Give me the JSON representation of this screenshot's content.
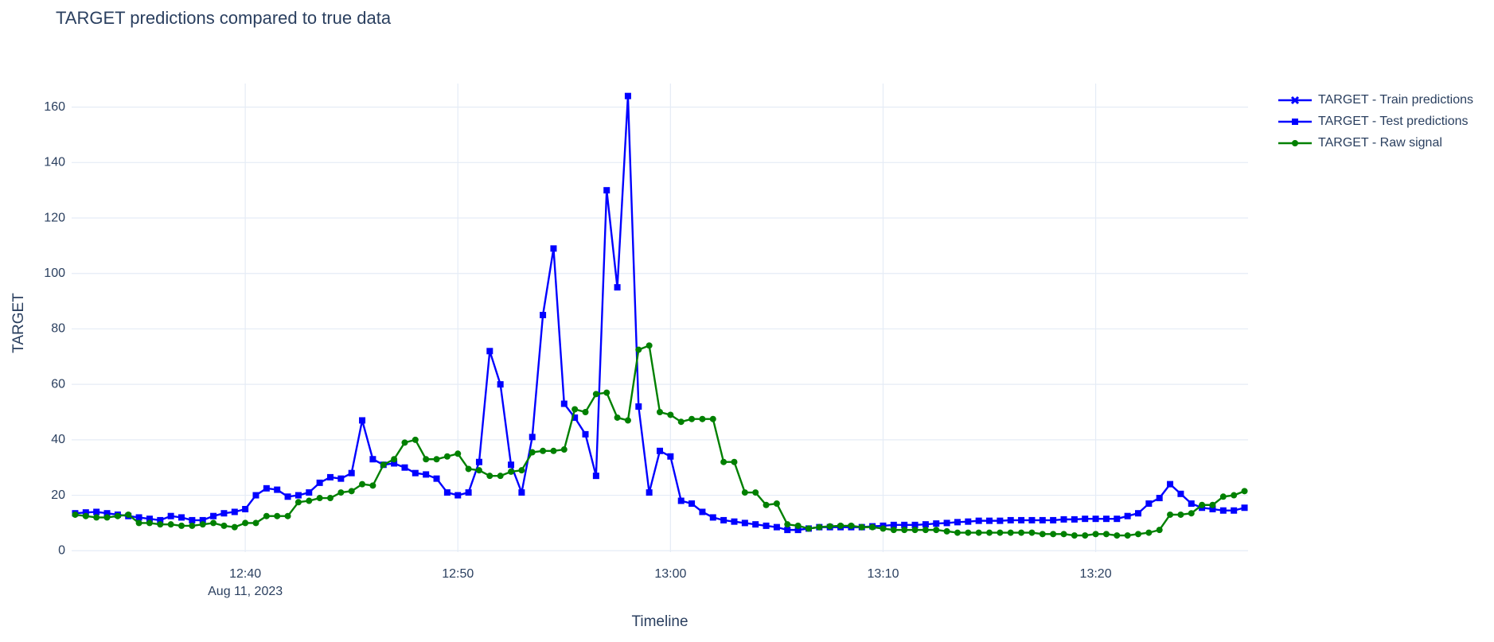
{
  "chart_data": {
    "type": "line",
    "title": "TARGET predictions compared to true data",
    "x_label": "Timeline",
    "y_label": "TARGET",
    "x_date_label": "Aug 11, 2023",
    "xlim": [
      "2023-08-11T12:31:50",
      "2023-08-11T13:27:10"
    ],
    "xticks": [
      {
        "value": "2023-08-11T12:40:00",
        "label": "12:40"
      },
      {
        "value": "2023-08-11T12:50:00",
        "label": "12:50"
      },
      {
        "value": "2023-08-11T13:00:00",
        "label": "13:00"
      },
      {
        "value": "2023-08-11T13:10:00",
        "label": "13:10"
      },
      {
        "value": "2023-08-11T13:20:00",
        "label": "13:20"
      }
    ],
    "ylim": [
      -0.5,
      168.5
    ],
    "yticks": [
      0,
      20,
      40,
      60,
      80,
      100,
      120,
      140,
      160
    ],
    "grid": true,
    "legend": "right",
    "x": [
      "2023-08-11T12:32:00",
      "2023-08-11T12:32:30",
      "2023-08-11T12:33:00",
      "2023-08-11T12:33:30",
      "2023-08-11T12:34:00",
      "2023-08-11T12:34:30",
      "2023-08-11T12:35:00",
      "2023-08-11T12:35:30",
      "2023-08-11T12:36:00",
      "2023-08-11T12:36:30",
      "2023-08-11T12:37:00",
      "2023-08-11T12:37:30",
      "2023-08-11T12:38:00",
      "2023-08-11T12:38:30",
      "2023-08-11T12:39:00",
      "2023-08-11T12:39:30",
      "2023-08-11T12:40:00",
      "2023-08-11T12:40:30",
      "2023-08-11T12:41:00",
      "2023-08-11T12:41:30",
      "2023-08-11T12:42:00",
      "2023-08-11T12:42:30",
      "2023-08-11T12:43:00",
      "2023-08-11T12:43:30",
      "2023-08-11T12:44:00",
      "2023-08-11T12:44:30",
      "2023-08-11T12:45:00",
      "2023-08-11T12:45:30",
      "2023-08-11T12:46:00",
      "2023-08-11T12:46:30",
      "2023-08-11T12:47:00",
      "2023-08-11T12:47:30",
      "2023-08-11T12:48:00",
      "2023-08-11T12:48:30",
      "2023-08-11T12:49:00",
      "2023-08-11T12:49:30",
      "2023-08-11T12:50:00",
      "2023-08-11T12:50:30",
      "2023-08-11T12:51:00",
      "2023-08-11T12:51:30",
      "2023-08-11T12:52:00",
      "2023-08-11T12:52:30",
      "2023-08-11T12:53:00",
      "2023-08-11T12:53:30",
      "2023-08-11T12:54:00",
      "2023-08-11T12:54:30",
      "2023-08-11T12:55:00",
      "2023-08-11T12:55:30",
      "2023-08-11T12:56:00",
      "2023-08-11T12:56:30",
      "2023-08-11T12:57:00",
      "2023-08-11T12:57:30",
      "2023-08-11T12:58:00",
      "2023-08-11T12:58:30",
      "2023-08-11T12:59:00",
      "2023-08-11T12:59:30",
      "2023-08-11T13:00:00",
      "2023-08-11T13:00:30",
      "2023-08-11T13:01:00",
      "2023-08-11T13:01:30",
      "2023-08-11T13:02:00",
      "2023-08-11T13:02:30",
      "2023-08-11T13:03:00",
      "2023-08-11T13:03:30",
      "2023-08-11T13:04:00",
      "2023-08-11T13:04:30",
      "2023-08-11T13:05:00",
      "2023-08-11T13:05:30",
      "2023-08-11T13:06:00",
      "2023-08-11T13:06:30",
      "2023-08-11T13:07:00",
      "2023-08-11T13:07:30",
      "2023-08-11T13:08:00",
      "2023-08-11T13:08:30",
      "2023-08-11T13:09:00",
      "2023-08-11T13:09:30",
      "2023-08-11T13:10:00",
      "2023-08-11T13:10:30",
      "2023-08-11T13:11:00",
      "2023-08-11T13:11:30",
      "2023-08-11T13:12:00",
      "2023-08-11T13:12:30",
      "2023-08-11T13:13:00",
      "2023-08-11T13:13:30",
      "2023-08-11T13:14:00",
      "2023-08-11T13:14:30",
      "2023-08-11T13:15:00",
      "2023-08-11T13:15:30",
      "2023-08-11T13:16:00",
      "2023-08-11T13:16:30",
      "2023-08-11T13:17:00",
      "2023-08-11T13:17:30",
      "2023-08-11T13:18:00",
      "2023-08-11T13:18:30",
      "2023-08-11T13:19:00",
      "2023-08-11T13:19:30",
      "2023-08-11T13:20:00",
      "2023-08-11T13:20:30",
      "2023-08-11T13:21:00",
      "2023-08-11T13:21:30",
      "2023-08-11T13:22:00",
      "2023-08-11T13:22:30",
      "2023-08-11T13:23:00",
      "2023-08-11T13:23:30",
      "2023-08-11T13:24:00",
      "2023-08-11T13:24:30",
      "2023-08-11T13:25:00",
      "2023-08-11T13:25:30",
      "2023-08-11T13:26:00",
      "2023-08-11T13:26:30",
      "2023-08-11T13:27:00"
    ],
    "series": [
      {
        "name": "TARGET - Train predictions",
        "color": "#0000ff",
        "marker": "x",
        "x": [],
        "values": []
      },
      {
        "name": "TARGET - Test predictions",
        "color": "#0000ff",
        "marker": "square",
        "values": [
          13.5,
          13.8,
          14,
          13.5,
          13,
          12.5,
          12,
          11.5,
          11,
          12.5,
          12,
          11,
          11,
          12.5,
          13.5,
          14,
          15,
          20,
          22.5,
          22,
          19.5,
          20,
          21,
          24.5,
          26.5,
          26,
          28,
          47,
          33,
          31,
          31.5,
          30,
          28,
          27.5,
          26,
          21,
          20,
          21,
          32,
          72,
          60,
          31,
          21,
          41,
          85,
          109,
          53,
          48,
          42,
          27,
          130,
          95,
          164,
          52,
          21,
          36,
          34,
          18,
          17,
          14,
          12,
          11,
          10.5,
          10,
          9.5,
          9,
          8.5,
          7.5,
          7.5,
          8,
          8.5,
          8.5,
          8.5,
          8.5,
          8.5,
          8.8,
          9,
          9.3,
          9.3,
          9.3,
          9.5,
          9.8,
          10,
          10.3,
          10.5,
          10.8,
          10.8,
          10.8,
          11,
          11,
          11,
          11,
          11,
          11.3,
          11.3,
          11.5,
          11.5,
          11.5,
          11.5,
          12.5,
          13.5,
          17,
          19,
          24,
          20.5,
          17,
          15.5,
          15,
          14.5,
          14.5,
          15.5
        ]
      },
      {
        "name": "TARGET - Raw signal",
        "color": "#008000",
        "marker": "circle",
        "values": [
          13,
          12.5,
          12,
          12,
          12.5,
          13,
          10,
          10,
          9.5,
          9.5,
          9,
          9,
          9.5,
          10,
          9,
          8.5,
          10,
          10,
          12.5,
          12.5,
          12.5,
          17.5,
          18,
          19,
          19,
          21,
          21.5,
          24,
          23.5,
          31,
          33,
          39,
          40,
          33,
          33,
          34,
          35,
          29.5,
          29,
          27,
          27,
          28.5,
          29,
          35.5,
          36,
          36,
          36.5,
          51,
          50,
          56.5,
          57,
          48,
          47,
          72.5,
          74,
          50,
          49,
          46.5,
          47.5,
          47.5,
          47.5,
          32,
          32,
          21,
          21,
          16.5,
          17,
          9.5,
          9,
          8,
          8.5,
          8.8,
          9,
          9,
          8.5,
          8.5,
          8,
          7.5,
          7.5,
          7.5,
          7.5,
          7.5,
          7,
          6.5,
          6.5,
          6.5,
          6.5,
          6.5,
          6.5,
          6.5,
          6.5,
          6,
          6,
          6,
          5.5,
          5.5,
          6,
          6,
          5.5,
          5.5,
          6,
          6.5,
          7.5,
          13,
          13,
          13.5,
          16.5,
          16.5,
          19.5,
          20,
          21.5
        ]
      }
    ]
  }
}
